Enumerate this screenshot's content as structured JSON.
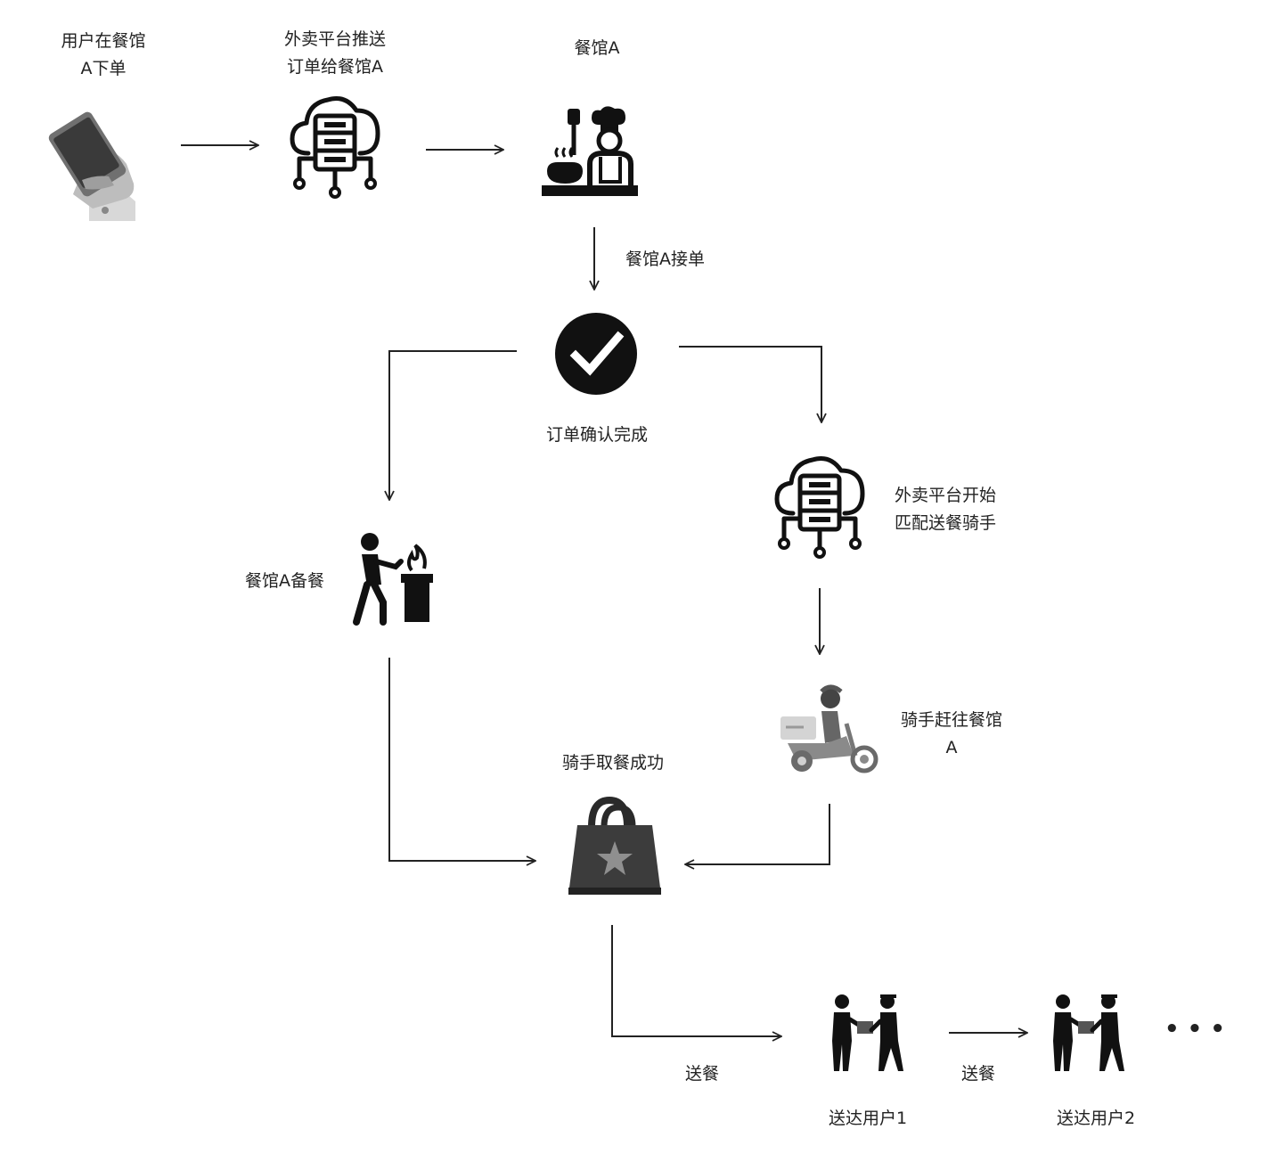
{
  "nodes": {
    "user": {
      "label_lines": [
        "用户在餐馆",
        "A下单"
      ],
      "icon": "phone-hand-icon"
    },
    "platform_push": {
      "label_lines": [
        "外卖平台推送",
        "订单给餐馆A"
      ],
      "icon": "cloud-server-icon"
    },
    "restaurant": {
      "label_lines": [
        "餐馆A"
      ],
      "icon": "chef-cooking-icon"
    },
    "order_confirmed": {
      "label_lines": [
        "订单确认完成"
      ],
      "icon": "checkmark-icon"
    },
    "platform_match": {
      "label_lines": [
        "外卖平台开始",
        "匹配送餐骑手"
      ],
      "icon": "cloud-server-icon"
    },
    "prepare": {
      "label_lines": [
        "餐馆A备餐"
      ],
      "icon": "cook-stove-icon"
    },
    "rider_go": {
      "label_lines": [
        "骑手赶往餐馆",
        "A"
      ],
      "icon": "scooter-rider-icon"
    },
    "pickup": {
      "label_lines": [
        "骑手取餐成功"
      ],
      "icon": "shopping-bag-icon"
    },
    "deliver1": {
      "label_lines": [
        "送达用户1"
      ],
      "icon": "handover-icon"
    },
    "deliver2": {
      "label_lines": [
        "送达用户2"
      ],
      "icon": "handover-icon"
    },
    "more": {
      "label": "• • •"
    }
  },
  "edges": {
    "accept_label": "餐馆A接单",
    "deliver_label_1": "送餐",
    "deliver_label_2": "送餐"
  }
}
